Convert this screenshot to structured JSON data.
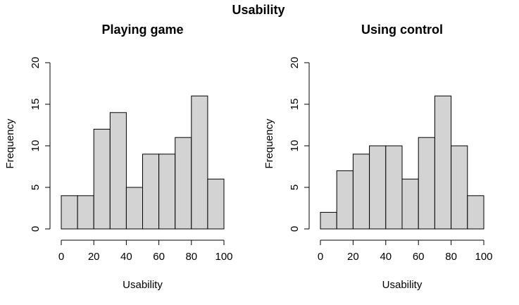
{
  "figure": {
    "title": "Usability"
  },
  "chart_data": [
    {
      "type": "bar",
      "title": "Playing game",
      "xlabel": "Usability",
      "ylabel": "Frequency",
      "bin_edges": [
        0,
        10,
        20,
        30,
        40,
        50,
        60,
        70,
        80,
        90,
        100
      ],
      "values": [
        4,
        4,
        12,
        14,
        5,
        9,
        9,
        11,
        16,
        6
      ],
      "xlim": [
        0,
        100
      ],
      "ylim": [
        0,
        20
      ],
      "xticks": [
        0,
        20,
        40,
        60,
        80,
        100
      ],
      "yticks": [
        0,
        5,
        10,
        15,
        20
      ],
      "grid": false,
      "legend": "none",
      "bar_color": "#d3d3d3"
    },
    {
      "type": "bar",
      "title": "Using control",
      "xlabel": "Usability",
      "ylabel": "Frequency",
      "bin_edges": [
        0,
        10,
        20,
        30,
        40,
        50,
        60,
        70,
        80,
        90,
        100
      ],
      "values": [
        2,
        7,
        9,
        10,
        10,
        6,
        11,
        16,
        10,
        4
      ],
      "xlim": [
        0,
        100
      ],
      "ylim": [
        0,
        20
      ],
      "xticks": [
        0,
        20,
        40,
        60,
        80,
        100
      ],
      "yticks": [
        0,
        5,
        10,
        15,
        20
      ],
      "grid": false,
      "legend": "none",
      "bar_color": "#d3d3d3"
    }
  ]
}
